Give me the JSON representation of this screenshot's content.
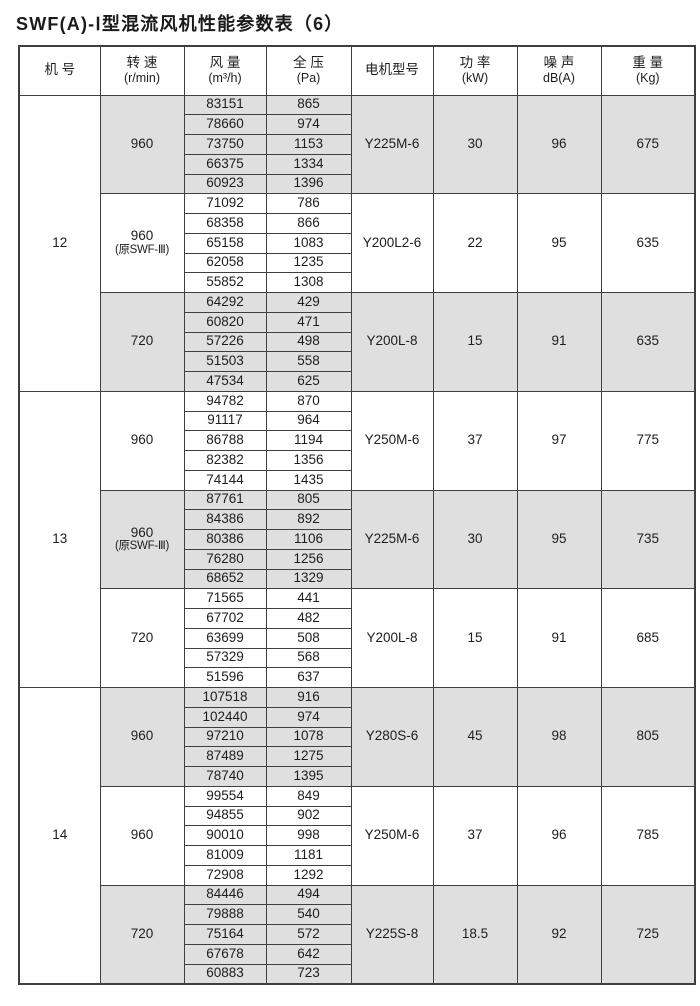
{
  "title": "SWF(A)-Ⅰ型混流风机性能参数表（6）",
  "table": {
    "headers": [
      {
        "name": "machine-no",
        "lines": [
          "机  号"
        ]
      },
      {
        "name": "speed",
        "lines": [
          "转 速",
          "(r/min)"
        ]
      },
      {
        "name": "flow",
        "lines": [
          "风 量",
          "(m³/h)"
        ]
      },
      {
        "name": "pressure",
        "lines": [
          "全 压",
          "(Pa)"
        ]
      },
      {
        "name": "motor-model",
        "lines": [
          "电机型号"
        ]
      },
      {
        "name": "power",
        "lines": [
          "功 率",
          "(kW)"
        ]
      },
      {
        "name": "noise",
        "lines": [
          "噪 声",
          "dB(A)"
        ]
      },
      {
        "name": "weight",
        "lines": [
          "重 量",
          "(Kg)"
        ]
      }
    ],
    "machines": [
      {
        "no": "12",
        "groups": [
          {
            "speed": "960",
            "note": "",
            "shaded": true,
            "rows": [
              [
                "83151",
                "865"
              ],
              [
                "78660",
                "974"
              ],
              [
                "73750",
                "1153"
              ],
              [
                "66375",
                "1334"
              ],
              [
                "60923",
                "1396"
              ]
            ],
            "motor": "Y225M-6",
            "power": "30",
            "noise": "96",
            "weight": "675"
          },
          {
            "speed": "960",
            "note": "(原SWF-Ⅲ)",
            "shaded": false,
            "rows": [
              [
                "71092",
                "786"
              ],
              [
                "68358",
                "866"
              ],
              [
                "65158",
                "1083"
              ],
              [
                "62058",
                "1235"
              ],
              [
                "55852",
                "1308"
              ]
            ],
            "motor": "Y200L2-6",
            "power": "22",
            "noise": "95",
            "weight": "635"
          },
          {
            "speed": "720",
            "note": "",
            "shaded": true,
            "rows": [
              [
                "64292",
                "429"
              ],
              [
                "60820",
                "471"
              ],
              [
                "57226",
                "498"
              ],
              [
                "51503",
                "558"
              ],
              [
                "47534",
                "625"
              ]
            ],
            "motor": "Y200L-8",
            "power": "15",
            "noise": "91",
            "weight": "635"
          }
        ]
      },
      {
        "no": "13",
        "groups": [
          {
            "speed": "960",
            "note": "",
            "shaded": false,
            "rows": [
              [
                "94782",
                "870"
              ],
              [
                "91117",
                "964"
              ],
              [
                "86788",
                "1194"
              ],
              [
                "82382",
                "1356"
              ],
              [
                "74144",
                "1435"
              ]
            ],
            "motor": "Y250M-6",
            "power": "37",
            "noise": "97",
            "weight": "775"
          },
          {
            "speed": "960",
            "note": "(原SWF-Ⅲ)",
            "shaded": true,
            "rows": [
              [
                "87761",
                "805"
              ],
              [
                "84386",
                "892"
              ],
              [
                "80386",
                "1106"
              ],
              [
                "76280",
                "1256"
              ],
              [
                "68652",
                "1329"
              ]
            ],
            "motor": "Y225M-6",
            "power": "30",
            "noise": "95",
            "weight": "735"
          },
          {
            "speed": "720",
            "note": "",
            "shaded": false,
            "rows": [
              [
                "71565",
                "441"
              ],
              [
                "67702",
                "482"
              ],
              [
                "63699",
                "508"
              ],
              [
                "57329",
                "568"
              ],
              [
                "51596",
                "637"
              ]
            ],
            "motor": "Y200L-8",
            "power": "15",
            "noise": "91",
            "weight": "685"
          }
        ]
      },
      {
        "no": "14",
        "groups": [
          {
            "speed": "960",
            "note": "",
            "shaded": true,
            "rows": [
              [
                "107518",
                "916"
              ],
              [
                "102440",
                "974"
              ],
              [
                "97210",
                "1078"
              ],
              [
                "87489",
                "1275"
              ],
              [
                "78740",
                "1395"
              ]
            ],
            "motor": "Y280S-6",
            "power": "45",
            "noise": "98",
            "weight": "805"
          },
          {
            "speed": "960",
            "note": "",
            "shaded": false,
            "rows": [
              [
                "99554",
                "849"
              ],
              [
                "94855",
                "902"
              ],
              [
                "90010",
                "998"
              ],
              [
                "81009",
                "1181"
              ],
              [
                "72908",
                "1292"
              ]
            ],
            "motor": "Y250M-6",
            "power": "37",
            "noise": "96",
            "weight": "785"
          },
          {
            "speed": "720",
            "note": "",
            "shaded": true,
            "rows": [
              [
                "84446",
                "494"
              ],
              [
                "79888",
                "540"
              ],
              [
                "75164",
                "572"
              ],
              [
                "67678",
                "642"
              ],
              [
                "60883",
                "723"
              ]
            ],
            "motor": "Y225S-8",
            "power": "18.5",
            "noise": "92",
            "weight": "725"
          }
        ]
      }
    ]
  }
}
